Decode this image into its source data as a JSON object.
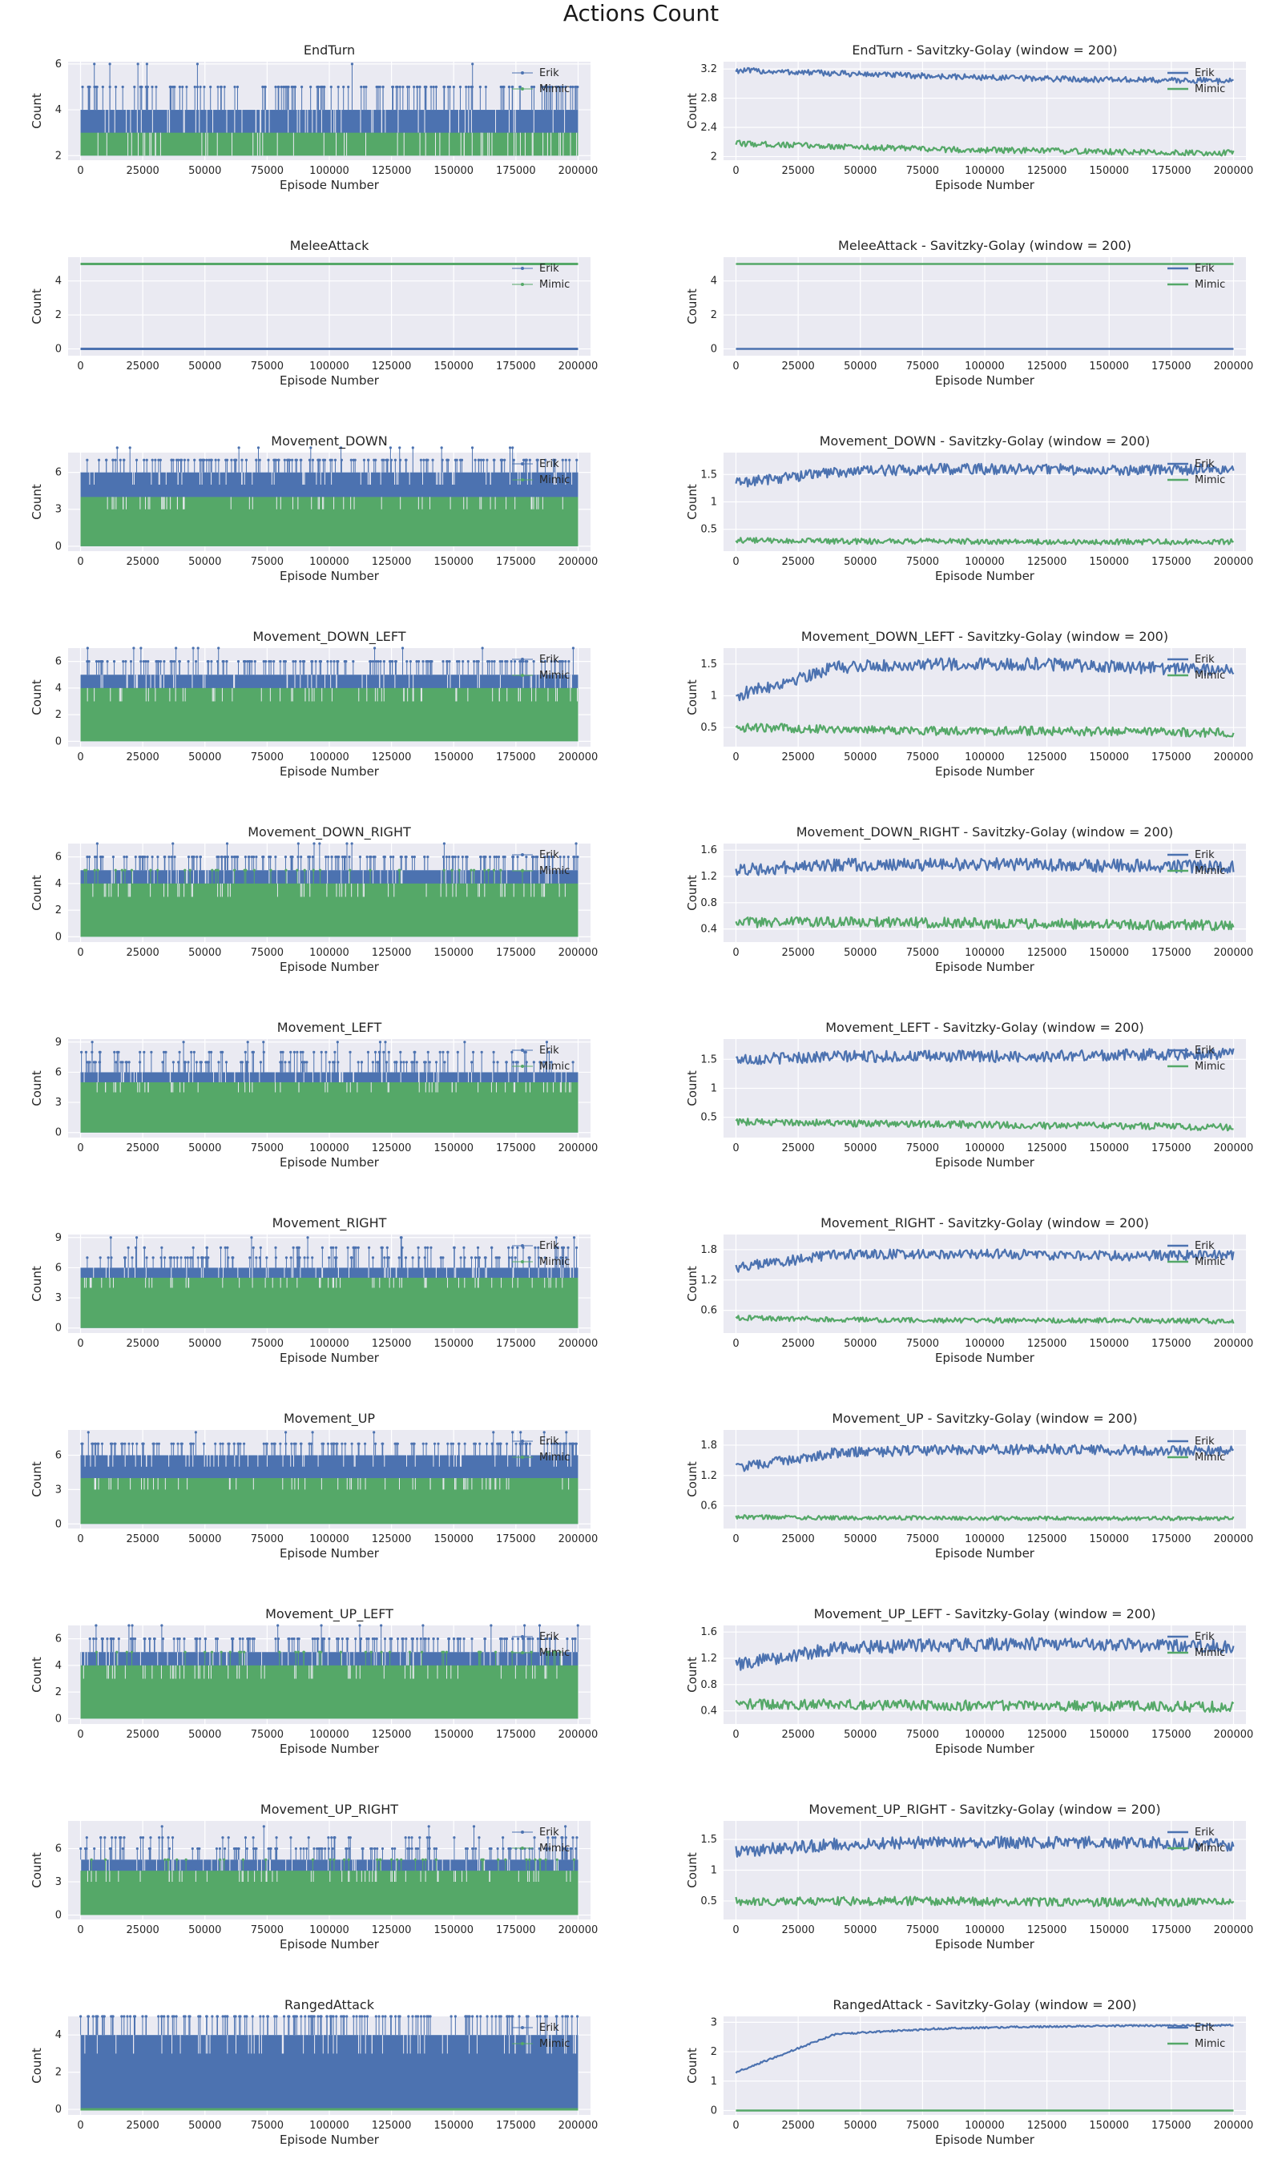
{
  "title": "Actions Count",
  "colors": {
    "background": "#ffffff",
    "plot_bg": "#eaeaf2",
    "grid": "#ffffff",
    "erik": "#4c72b0",
    "mimic": "#55a868",
    "text": "#262626"
  },
  "common": {
    "xlabel": "Episode Number",
    "ylabel": "Count",
    "xlim": [
      -5000,
      205000
    ],
    "xticks": [
      0,
      25000,
      50000,
      75000,
      100000,
      125000,
      150000,
      175000,
      200000
    ],
    "legend": [
      "Erik",
      "Mimic"
    ],
    "legend_position": "upper-right"
  },
  "chart_data": [
    {
      "type": "line",
      "style": "stem",
      "title": "EndTurn",
      "ylim": [
        1.8,
        6.1
      ],
      "yticks": [
        2,
        4,
        6
      ],
      "series": [
        {
          "name": "Erik",
          "base": [
            2,
            4
          ],
          "peaks": [
            5,
            6
          ]
        },
        {
          "name": "Mimic",
          "base": [
            2,
            3
          ],
          "peaks": [
            3,
            3
          ]
        }
      ]
    },
    {
      "type": "line",
      "style": "smooth",
      "title": "EndTurn - Savitzky-Golay (window = 200)",
      "ylim": [
        1.95,
        3.3
      ],
      "yticks": [
        2.0,
        2.4,
        2.8,
        3.2
      ],
      "series": [
        {
          "name": "Erik",
          "values": [
            3.18,
            3.14,
            3.1,
            3.07,
            3.05,
            3.04
          ],
          "noise": 0.04
        },
        {
          "name": "Mimic",
          "values": [
            2.18,
            2.14,
            2.1,
            2.08,
            2.06,
            2.05
          ],
          "noise": 0.04
        }
      ]
    },
    {
      "type": "line",
      "style": "stem",
      "title": "MeleeAttack",
      "ylim": [
        -0.4,
        5.4
      ],
      "yticks": [
        0,
        2,
        4
      ],
      "series": [
        {
          "name": "Erik",
          "base": [
            0,
            0
          ],
          "peaks": [
            0,
            0
          ]
        },
        {
          "name": "Mimic",
          "base": [
            5,
            5
          ],
          "peaks": [
            5,
            5
          ]
        }
      ]
    },
    {
      "type": "line",
      "style": "smooth",
      "title": "MeleeAttack - Savitzky-Golay (window = 200)",
      "ylim": [
        -0.4,
        5.4
      ],
      "yticks": [
        0,
        2,
        4
      ],
      "series": [
        {
          "name": "Erik",
          "values": [
            0,
            0,
            0,
            0,
            0,
            0
          ],
          "noise": 0
        },
        {
          "name": "Mimic",
          "values": [
            5,
            5,
            5,
            5,
            5,
            5
          ],
          "noise": 0
        }
      ]
    },
    {
      "type": "line",
      "style": "stem",
      "title": "Movement_DOWN",
      "ylim": [
        -0.4,
        7.6
      ],
      "yticks": [
        0,
        3,
        6
      ],
      "series": [
        {
          "name": "Erik",
          "base": [
            0,
            6
          ],
          "peaks": [
            7,
            8
          ]
        },
        {
          "name": "Mimic",
          "base": [
            0,
            4
          ],
          "peaks": [
            4,
            4
          ]
        }
      ]
    },
    {
      "type": "line",
      "style": "smooth",
      "title": "Movement_DOWN - Savitzky-Golay (window = 200)",
      "ylim": [
        0.1,
        1.9
      ],
      "yticks": [
        0.5,
        1.0,
        1.5
      ],
      "series": [
        {
          "name": "Erik",
          "values": [
            1.35,
            1.55,
            1.6,
            1.6,
            1.58,
            1.6
          ],
          "noise": 0.1
        },
        {
          "name": "Mimic",
          "values": [
            0.3,
            0.28,
            0.28,
            0.27,
            0.27,
            0.27
          ],
          "noise": 0.05
        }
      ]
    },
    {
      "type": "line",
      "style": "stem",
      "title": "Movement_DOWN_LEFT",
      "ylim": [
        -0.4,
        7.0
      ],
      "yticks": [
        0,
        2,
        4,
        6
      ],
      "series": [
        {
          "name": "Erik",
          "base": [
            0,
            5
          ],
          "peaks": [
            6,
            7
          ]
        },
        {
          "name": "Mimic",
          "base": [
            0,
            4
          ],
          "peaks": [
            4,
            4
          ]
        }
      ]
    },
    {
      "type": "line",
      "style": "smooth",
      "title": "Movement_DOWN_LEFT - Savitzky-Golay (window = 200)",
      "ylim": [
        0.2,
        1.75
      ],
      "yticks": [
        0.5,
        1.0,
        1.5
      ],
      "series": [
        {
          "name": "Erik",
          "values": [
            1.0,
            1.45,
            1.5,
            1.5,
            1.45,
            1.4
          ],
          "noise": 0.1
        },
        {
          "name": "Mimic",
          "values": [
            0.5,
            0.48,
            0.45,
            0.45,
            0.43,
            0.42
          ],
          "noise": 0.07
        }
      ]
    },
    {
      "type": "line",
      "style": "stem",
      "title": "Movement_DOWN_RIGHT",
      "ylim": [
        -0.4,
        7.0
      ],
      "yticks": [
        0,
        2,
        4,
        6
      ],
      "series": [
        {
          "name": "Erik",
          "base": [
            0,
            5
          ],
          "peaks": [
            6,
            7
          ]
        },
        {
          "name": "Mimic",
          "base": [
            0,
            4
          ],
          "peaks": [
            5,
            5
          ]
        }
      ]
    },
    {
      "type": "line",
      "style": "smooth",
      "title": "Movement_DOWN_RIGHT - Savitzky-Golay (window = 200)",
      "ylim": [
        0.2,
        1.7
      ],
      "yticks": [
        0.4,
        0.8,
        1.2,
        1.6
      ],
      "series": [
        {
          "name": "Erik",
          "values": [
            1.3,
            1.38,
            1.38,
            1.38,
            1.36,
            1.35
          ],
          "noise": 0.1
        },
        {
          "name": "Mimic",
          "values": [
            0.5,
            0.5,
            0.5,
            0.48,
            0.47,
            0.45
          ],
          "noise": 0.08
        }
      ]
    },
    {
      "type": "line",
      "style": "stem",
      "title": "Movement_LEFT",
      "ylim": [
        -0.5,
        9.3
      ],
      "yticks": [
        0,
        3,
        6,
        9
      ],
      "series": [
        {
          "name": "Erik",
          "base": [
            0,
            6
          ],
          "peaks": [
            7,
            9
          ]
        },
        {
          "name": "Mimic",
          "base": [
            0,
            5
          ],
          "peaks": [
            5,
            5
          ]
        }
      ]
    },
    {
      "type": "line",
      "style": "smooth",
      "title": "Movement_LEFT - Savitzky-Golay (window = 200)",
      "ylim": [
        0.15,
        1.85
      ],
      "yticks": [
        0.5,
        1.0,
        1.5
      ],
      "series": [
        {
          "name": "Erik",
          "values": [
            1.5,
            1.55,
            1.55,
            1.55,
            1.58,
            1.6
          ],
          "noise": 0.1
        },
        {
          "name": "Mimic",
          "values": [
            0.42,
            0.4,
            0.38,
            0.36,
            0.35,
            0.33
          ],
          "noise": 0.06
        }
      ]
    },
    {
      "type": "line",
      "style": "stem",
      "title": "Movement_RIGHT",
      "ylim": [
        -0.5,
        9.3
      ],
      "yticks": [
        0,
        3,
        6,
        9
      ],
      "series": [
        {
          "name": "Erik",
          "base": [
            0,
            6
          ],
          "peaks": [
            7,
            9
          ]
        },
        {
          "name": "Mimic",
          "base": [
            0,
            5
          ],
          "peaks": [
            5,
            5
          ]
        }
      ]
    },
    {
      "type": "line",
      "style": "smooth",
      "title": "Movement_RIGHT - Savitzky-Golay (window = 200)",
      "ylim": [
        0.15,
        2.1
      ],
      "yticks": [
        0.6,
        1.2,
        1.8
      ],
      "series": [
        {
          "name": "Erik",
          "values": [
            1.45,
            1.7,
            1.72,
            1.7,
            1.68,
            1.7
          ],
          "noise": 0.1
        },
        {
          "name": "Mimic",
          "values": [
            0.45,
            0.42,
            0.4,
            0.4,
            0.4,
            0.38
          ],
          "noise": 0.05
        }
      ]
    },
    {
      "type": "line",
      "style": "stem",
      "title": "Movement_UP",
      "ylim": [
        -0.4,
        8.2
      ],
      "yticks": [
        0,
        3,
        6
      ],
      "series": [
        {
          "name": "Erik",
          "base": [
            0,
            6
          ],
          "peaks": [
            7,
            8
          ]
        },
        {
          "name": "Mimic",
          "base": [
            0,
            4
          ],
          "peaks": [
            4,
            4
          ]
        }
      ]
    },
    {
      "type": "line",
      "style": "smooth",
      "title": "Movement_UP - Savitzky-Golay (window = 200)",
      "ylim": [
        0.15,
        2.1
      ],
      "yticks": [
        0.6,
        1.2,
        1.8
      ],
      "series": [
        {
          "name": "Erik",
          "values": [
            1.35,
            1.65,
            1.7,
            1.72,
            1.7,
            1.68
          ],
          "noise": 0.1
        },
        {
          "name": "Mimic",
          "values": [
            0.38,
            0.36,
            0.36,
            0.35,
            0.35,
            0.35
          ],
          "noise": 0.04
        }
      ]
    },
    {
      "type": "line",
      "style": "stem",
      "title": "Movement_UP_LEFT",
      "ylim": [
        -0.4,
        7.0
      ],
      "yticks": [
        0,
        2,
        4,
        6
      ],
      "series": [
        {
          "name": "Erik",
          "base": [
            0,
            5
          ],
          "peaks": [
            6,
            7
          ]
        },
        {
          "name": "Mimic",
          "base": [
            0,
            4
          ],
          "peaks": [
            5,
            5
          ]
        }
      ]
    },
    {
      "type": "line",
      "style": "smooth",
      "title": "Movement_UP_LEFT - Savitzky-Golay (window = 200)",
      "ylim": [
        0.2,
        1.7
      ],
      "yticks": [
        0.4,
        0.8,
        1.2,
        1.6
      ],
      "series": [
        {
          "name": "Erik",
          "values": [
            1.1,
            1.35,
            1.4,
            1.42,
            1.4,
            1.38
          ],
          "noise": 0.1
        },
        {
          "name": "Mimic",
          "values": [
            0.5,
            0.5,
            0.48,
            0.48,
            0.47,
            0.46
          ],
          "noise": 0.08
        }
      ]
    },
    {
      "type": "line",
      "style": "stem",
      "title": "Movement_UP_RIGHT",
      "ylim": [
        -0.4,
        8.5
      ],
      "yticks": [
        0,
        3,
        6
      ],
      "series": [
        {
          "name": "Erik",
          "base": [
            0,
            5
          ],
          "peaks": [
            6,
            8
          ]
        },
        {
          "name": "Mimic",
          "base": [
            0,
            4
          ],
          "peaks": [
            5,
            5
          ]
        }
      ]
    },
    {
      "type": "line",
      "style": "smooth",
      "title": "Movement_UP_RIGHT - Savitzky-Golay (window = 200)",
      "ylim": [
        0.2,
        1.8
      ],
      "yticks": [
        0.5,
        1.0,
        1.5
      ],
      "series": [
        {
          "name": "Erik",
          "values": [
            1.3,
            1.42,
            1.45,
            1.45,
            1.45,
            1.4
          ],
          "noise": 0.1
        },
        {
          "name": "Mimic",
          "values": [
            0.5,
            0.5,
            0.5,
            0.48,
            0.48,
            0.47
          ],
          "noise": 0.07
        }
      ]
    },
    {
      "type": "line",
      "style": "stem",
      "title": "RangedAttack",
      "ylim": [
        -0.3,
        5.0
      ],
      "yticks": [
        0,
        2,
        4
      ],
      "series": [
        {
          "name": "Erik",
          "base": [
            0,
            4
          ],
          "peaks": [
            4,
            5
          ]
        },
        {
          "name": "Mimic",
          "base": [
            0,
            0
          ],
          "peaks": [
            0,
            0
          ]
        }
      ]
    },
    {
      "type": "line",
      "style": "smooth",
      "title": "RangedAttack - Savitzky-Golay (window = 200)",
      "ylim": [
        -0.15,
        3.2
      ],
      "yticks": [
        0,
        1,
        2,
        3
      ],
      "series": [
        {
          "name": "Erik",
          "values": [
            1.3,
            2.6,
            2.78,
            2.85,
            2.88,
            2.9
          ],
          "noise": 0.03
        },
        {
          "name": "Mimic",
          "values": [
            0,
            0,
            0,
            0,
            0,
            0
          ],
          "noise": 0
        }
      ]
    }
  ]
}
